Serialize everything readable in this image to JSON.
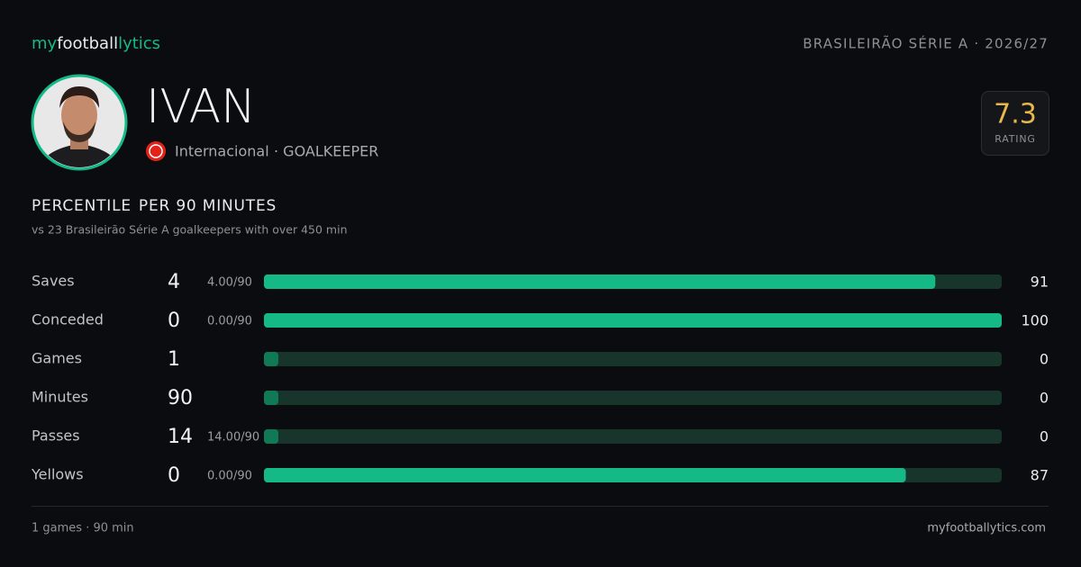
{
  "header": {
    "brand_1": "my",
    "brand_2": "football",
    "brand_3": "lytics",
    "competition": "BRASILEIRÃO SÉRIE A · 2026/27"
  },
  "player": {
    "name": "IVAN",
    "team": "Internacional",
    "position": "· GOALKEEPER",
    "rating": 7.3,
    "rating_label": "RATING"
  },
  "section": {
    "title": "PERCENTILE",
    "title_2": "PER 90 MINUTES",
    "subtitle": "vs 23 Brasileirão Série A goalkeepers with over 450 min"
  },
  "percentile_range": [
    0,
    100
  ],
  "stats": [
    {
      "label": "Saves",
      "value": 4,
      "per90": "4.00/90",
      "percentile": 91
    },
    {
      "label": "Conceded",
      "value": 0,
      "per90": "0.00/90",
      "percentile": 100
    },
    {
      "label": "Games",
      "value": 1,
      "percentile": 0
    },
    {
      "label": "Minutes",
      "value": 90,
      "percentile": 0
    },
    {
      "label": "Passes",
      "value": 14,
      "per90": "14.00/90",
      "percentile": 0
    },
    {
      "label": "Yellows",
      "value": 0,
      "per90": "0.00/90",
      "percentile": 87
    }
  ],
  "footer": {
    "left": "1 games · 90 min",
    "right": "myfootballytics.com"
  }
}
